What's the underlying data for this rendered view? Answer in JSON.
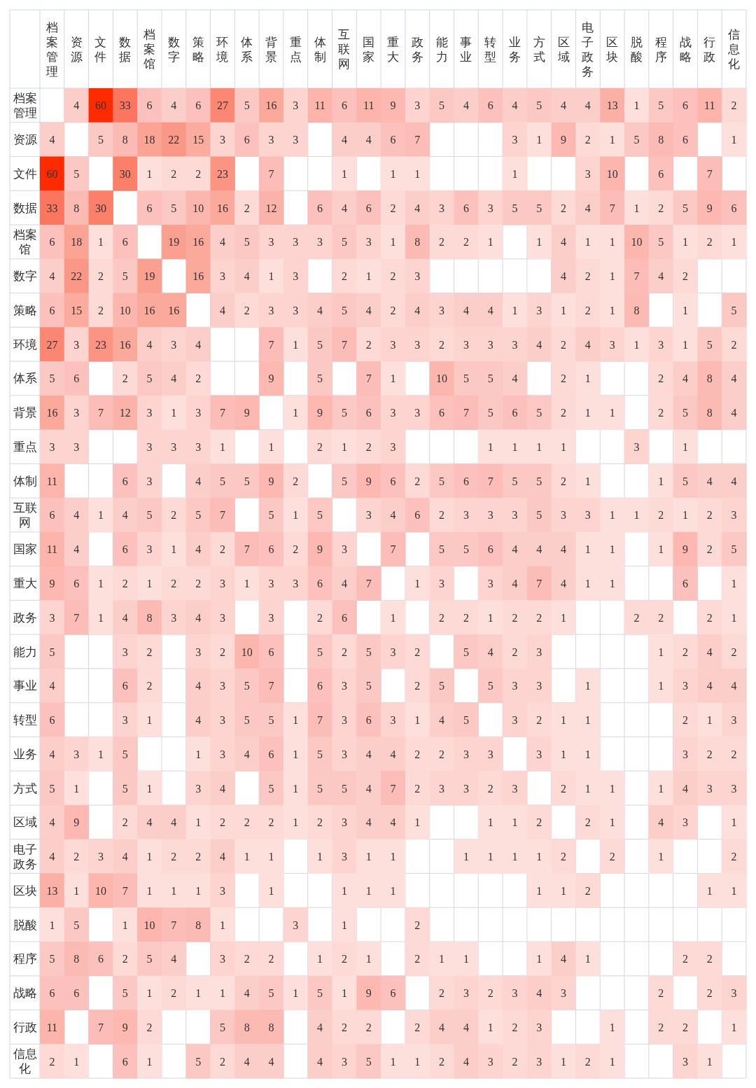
{
  "chart_data": {
    "type": "heatmap",
    "data_labels": true,
    "grid": true,
    "categories": [
      "档案管理",
      "资源",
      "文件",
      "数据",
      "档案馆",
      "数字",
      "策略",
      "环境",
      "体系",
      "背景",
      "重点",
      "体制",
      "互联网",
      "国家",
      "重大",
      "政务",
      "能力",
      "事业",
      "转型",
      "业务",
      "方式",
      "区域",
      "电子政务",
      "区块",
      "脱酸",
      "程序",
      "战略",
      "行政",
      "信息化"
    ],
    "y_categories": [
      "档案管理",
      "资源",
      "文件",
      "数据",
      "档案馆",
      "数字",
      "策略",
      "环境",
      "体系",
      "背景",
      "重点",
      "体制",
      "互联网",
      "国家",
      "重大",
      "政务",
      "能力",
      "事业",
      "转型",
      "业务",
      "方式",
      "区域",
      "电子政务",
      "区块",
      "脱酸",
      "程序",
      "战略",
      "行政",
      "信息化"
    ],
    "cells": [
      [
        null,
        4,
        60,
        33,
        6,
        4,
        6,
        27,
        5,
        16,
        3,
        11,
        6,
        11,
        9,
        3,
        5,
        4,
        6,
        4,
        5,
        4,
        4,
        13,
        1,
        5,
        6,
        11,
        2
      ],
      [
        4,
        null,
        5,
        8,
        18,
        22,
        15,
        3,
        6,
        3,
        3,
        null,
        4,
        4,
        6,
        7,
        null,
        null,
        null,
        3,
        1,
        9,
        2,
        1,
        5,
        8,
        6,
        null,
        1
      ],
      [
        60,
        5,
        null,
        30,
        1,
        2,
        2,
        23,
        null,
        7,
        null,
        null,
        1,
        null,
        1,
        1,
        null,
        null,
        null,
        1,
        null,
        null,
        3,
        10,
        null,
        6,
        null,
        7,
        null
      ],
      [
        33,
        8,
        30,
        null,
        6,
        5,
        10,
        16,
        2,
        12,
        null,
        6,
        4,
        6,
        2,
        4,
        3,
        6,
        3,
        5,
        5,
        2,
        4,
        7,
        1,
        2,
        5,
        9,
        6
      ],
      [
        6,
        18,
        1,
        6,
        null,
        19,
        16,
        4,
        5,
        3,
        3,
        3,
        5,
        3,
        1,
        8,
        2,
        2,
        1,
        null,
        1,
        4,
        1,
        1,
        10,
        5,
        1,
        2,
        1
      ],
      [
        4,
        22,
        2,
        5,
        19,
        null,
        16,
        3,
        4,
        1,
        3,
        null,
        2,
        1,
        2,
        3,
        null,
        null,
        null,
        null,
        null,
        4,
        2,
        1,
        7,
        4,
        2,
        null,
        null
      ],
      [
        6,
        15,
        2,
        10,
        16,
        16,
        null,
        4,
        2,
        3,
        3,
        4,
        5,
        4,
        2,
        4,
        3,
        4,
        4,
        1,
        3,
        1,
        2,
        1,
        8,
        null,
        1,
        null,
        5
      ],
      [
        27,
        3,
        23,
        16,
        4,
        3,
        4,
        null,
        null,
        7,
        1,
        5,
        7,
        2,
        3,
        3,
        2,
        3,
        3,
        3,
        4,
        2,
        4,
        3,
        1,
        3,
        1,
        5,
        2
      ],
      [
        5,
        6,
        null,
        2,
        5,
        4,
        2,
        null,
        null,
        9,
        null,
        5,
        null,
        7,
        1,
        null,
        10,
        5,
        5,
        4,
        null,
        2,
        1,
        null,
        null,
        2,
        4,
        8,
        4
      ],
      [
        16,
        3,
        7,
        12,
        3,
        1,
        3,
        7,
        9,
        null,
        1,
        9,
        5,
        6,
        3,
        3,
        6,
        7,
        5,
        6,
        5,
        2,
        1,
        1,
        null,
        2,
        5,
        8,
        4
      ],
      [
        3,
        3,
        null,
        null,
        3,
        3,
        3,
        1,
        null,
        1,
        null,
        2,
        1,
        2,
        3,
        null,
        null,
        null,
        1,
        1,
        1,
        1,
        null,
        null,
        3,
        null,
        1,
        null,
        null
      ],
      [
        11,
        null,
        null,
        6,
        3,
        null,
        4,
        5,
        5,
        9,
        2,
        null,
        5,
        9,
        6,
        2,
        5,
        6,
        7,
        5,
        5,
        2,
        1,
        null,
        null,
        1,
        5,
        4,
        4
      ],
      [
        6,
        4,
        1,
        4,
        5,
        2,
        5,
        7,
        null,
        5,
        1,
        5,
        null,
        3,
        4,
        6,
        2,
        3,
        3,
        3,
        5,
        3,
        3,
        1,
        1,
        2,
        1,
        2,
        3
      ],
      [
        11,
        4,
        null,
        6,
        3,
        1,
        4,
        2,
        7,
        6,
        2,
        9,
        3,
        null,
        7,
        null,
        5,
        5,
        6,
        4,
        4,
        4,
        1,
        1,
        null,
        1,
        9,
        2,
        5
      ],
      [
        9,
        6,
        1,
        2,
        1,
        2,
        2,
        3,
        1,
        3,
        3,
        6,
        4,
        7,
        null,
        1,
        3,
        null,
        3,
        4,
        7,
        4,
        1,
        1,
        null,
        null,
        6,
        null,
        1
      ],
      [
        3,
        7,
        1,
        4,
        8,
        3,
        4,
        3,
        null,
        3,
        null,
        2,
        6,
        null,
        1,
        null,
        2,
        2,
        1,
        2,
        2,
        1,
        null,
        null,
        2,
        2,
        null,
        2,
        1
      ],
      [
        5,
        null,
        null,
        3,
        2,
        null,
        3,
        2,
        10,
        6,
        null,
        5,
        2,
        5,
        3,
        2,
        null,
        5,
        4,
        2,
        3,
        null,
        null,
        null,
        null,
        1,
        2,
        4,
        2
      ],
      [
        4,
        null,
        null,
        6,
        2,
        null,
        4,
        3,
        5,
        7,
        null,
        6,
        3,
        5,
        null,
        2,
        5,
        null,
        5,
        3,
        3,
        null,
        1,
        null,
        null,
        1,
        3,
        4,
        4
      ],
      [
        6,
        null,
        null,
        3,
        1,
        null,
        4,
        3,
        5,
        5,
        1,
        7,
        3,
        6,
        3,
        1,
        4,
        5,
        null,
        3,
        2,
        1,
        1,
        null,
        null,
        null,
        2,
        1,
        3
      ],
      [
        4,
        3,
        1,
        5,
        null,
        null,
        1,
        3,
        4,
        6,
        1,
        5,
        3,
        4,
        4,
        2,
        2,
        3,
        3,
        null,
        3,
        1,
        1,
        null,
        null,
        null,
        3,
        2,
        2
      ],
      [
        5,
        1,
        null,
        5,
        1,
        null,
        3,
        4,
        null,
        5,
        1,
        5,
        5,
        4,
        7,
        2,
        3,
        3,
        2,
        3,
        null,
        2,
        1,
        1,
        null,
        1,
        4,
        3,
        3
      ],
      [
        4,
        9,
        null,
        2,
        4,
        4,
        1,
        2,
        2,
        2,
        1,
        2,
        3,
        4,
        4,
        1,
        null,
        null,
        1,
        1,
        2,
        null,
        2,
        1,
        null,
        4,
        3,
        null,
        1
      ],
      [
        4,
        2,
        3,
        4,
        1,
        2,
        2,
        4,
        1,
        1,
        null,
        1,
        3,
        1,
        1,
        null,
        null,
        1,
        1,
        1,
        1,
        2,
        null,
        2,
        null,
        1,
        null,
        null,
        2
      ],
      [
        13,
        1,
        10,
        7,
        1,
        1,
        1,
        3,
        null,
        1,
        null,
        null,
        1,
        1,
        1,
        null,
        null,
        null,
        null,
        null,
        1,
        1,
        2,
        null,
        null,
        null,
        null,
        1,
        1
      ],
      [
        1,
        5,
        null,
        1,
        10,
        7,
        8,
        1,
        null,
        null,
        3,
        null,
        1,
        null,
        null,
        2,
        null,
        null,
        null,
        null,
        null,
        null,
        null,
        null,
        null,
        null,
        null,
        null,
        null
      ],
      [
        5,
        8,
        6,
        2,
        5,
        4,
        null,
        3,
        2,
        2,
        null,
        1,
        2,
        1,
        null,
        2,
        1,
        1,
        null,
        null,
        1,
        4,
        1,
        null,
        null,
        null,
        2,
        2,
        null
      ],
      [
        6,
        6,
        null,
        5,
        1,
        2,
        1,
        1,
        4,
        5,
        1,
        5,
        1,
        9,
        6,
        null,
        2,
        3,
        2,
        3,
        4,
        3,
        null,
        null,
        null,
        2,
        null,
        2,
        3
      ],
      [
        11,
        null,
        7,
        9,
        2,
        null,
        null,
        5,
        8,
        8,
        null,
        4,
        2,
        2,
        null,
        2,
        4,
        4,
        1,
        2,
        3,
        null,
        null,
        1,
        null,
        2,
        2,
        null,
        1
      ],
      [
        2,
        1,
        null,
        6,
        1,
        null,
        5,
        2,
        4,
        4,
        null,
        4,
        3,
        5,
        1,
        1,
        2,
        4,
        3,
        2,
        3,
        1,
        2,
        1,
        null,
        null,
        3,
        1,
        null
      ]
    ]
  }
}
